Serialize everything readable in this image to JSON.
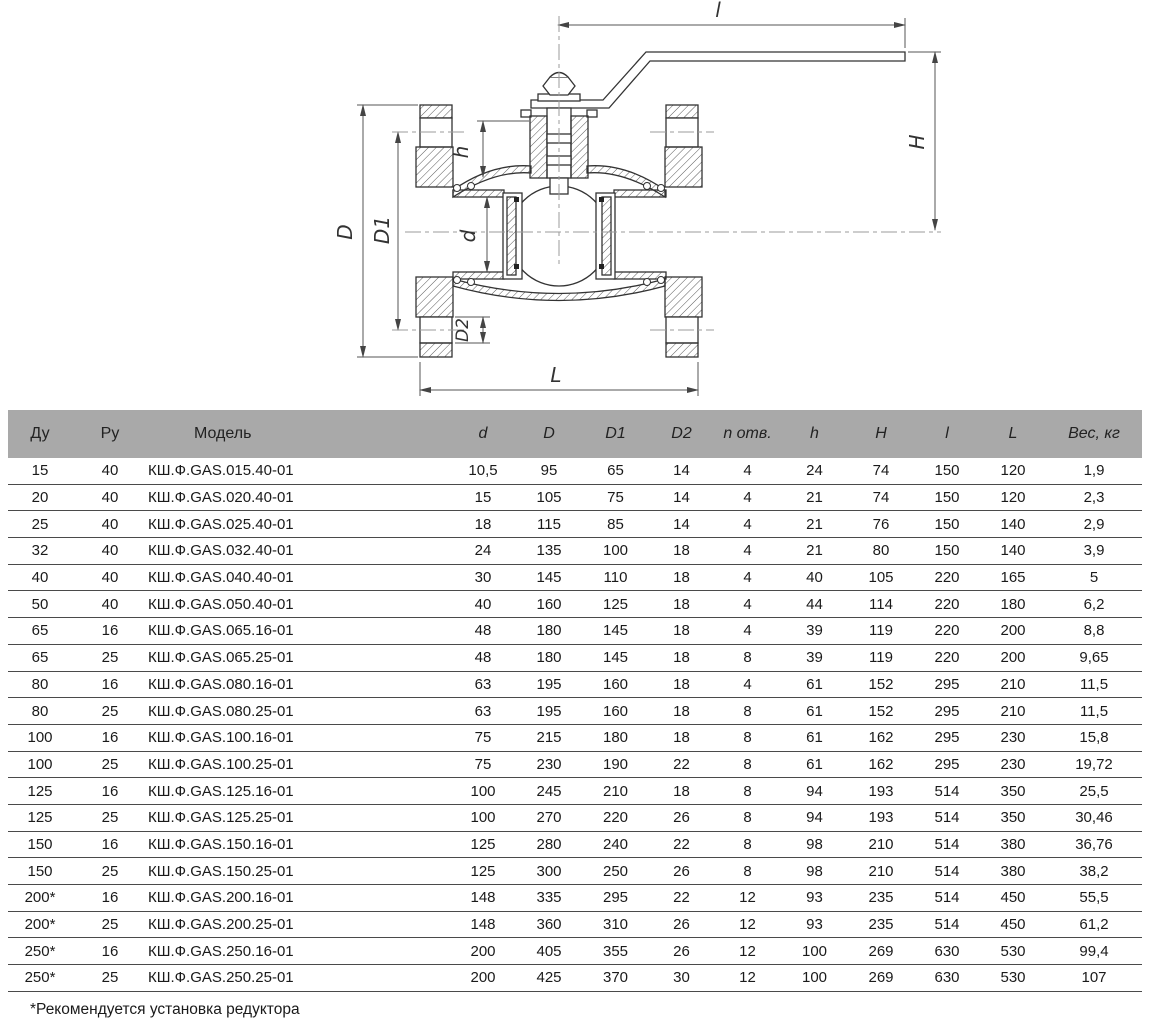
{
  "drawing": {
    "description": "Cross-section of flanged ball valve with lever handle",
    "dims": {
      "l": "l",
      "H": "H",
      "h": "h",
      "D": "D",
      "D1": "D1",
      "d": "d",
      "D2": "D2",
      "L": "L"
    }
  },
  "table": {
    "headers": [
      "Ду",
      "Ру",
      "Модель",
      "d",
      "D",
      "D1",
      "D2",
      "n отв.",
      "h",
      "H",
      "l",
      "L",
      "Вес, кг"
    ],
    "rows": [
      [
        "15",
        "40",
        "КШ.Ф.GAS.015.40-01",
        "10,5",
        "95",
        "65",
        "14",
        "4",
        "24",
        "74",
        "150",
        "120",
        "1,9"
      ],
      [
        "20",
        "40",
        "КШ.Ф.GAS.020.40-01",
        "15",
        "105",
        "75",
        "14",
        "4",
        "21",
        "74",
        "150",
        "120",
        "2,3"
      ],
      [
        "25",
        "40",
        "КШ.Ф.GAS.025.40-01",
        "18",
        "115",
        "85",
        "14",
        "4",
        "21",
        "76",
        "150",
        "140",
        "2,9"
      ],
      [
        "32",
        "40",
        "КШ.Ф.GAS.032.40-01",
        "24",
        "135",
        "100",
        "18",
        "4",
        "21",
        "80",
        "150",
        "140",
        "3,9"
      ],
      [
        "40",
        "40",
        "КШ.Ф.GAS.040.40-01",
        "30",
        "145",
        "110",
        "18",
        "4",
        "40",
        "105",
        "220",
        "165",
        "5"
      ],
      [
        "50",
        "40",
        "КШ.Ф.GAS.050.40-01",
        "40",
        "160",
        "125",
        "18",
        "4",
        "44",
        "114",
        "220",
        "180",
        "6,2"
      ],
      [
        "65",
        "16",
        "КШ.Ф.GAS.065.16-01",
        "48",
        "180",
        "145",
        "18",
        "4",
        "39",
        "119",
        "220",
        "200",
        "8,8"
      ],
      [
        "65",
        "25",
        "КШ.Ф.GAS.065.25-01",
        "48",
        "180",
        "145",
        "18",
        "8",
        "39",
        "119",
        "220",
        "200",
        "9,65"
      ],
      [
        "80",
        "16",
        "КШ.Ф.GAS.080.16-01",
        "63",
        "195",
        "160",
        "18",
        "4",
        "61",
        "152",
        "295",
        "210",
        "11,5"
      ],
      [
        "80",
        "25",
        "КШ.Ф.GAS.080.25-01",
        "63",
        "195",
        "160",
        "18",
        "8",
        "61",
        "152",
        "295",
        "210",
        "11,5"
      ],
      [
        "100",
        "16",
        "КШ.Ф.GAS.100.16-01",
        "75",
        "215",
        "180",
        "18",
        "8",
        "61",
        "162",
        "295",
        "230",
        "15,8"
      ],
      [
        "100",
        "25",
        "КШ.Ф.GAS.100.25-01",
        "75",
        "230",
        "190",
        "22",
        "8",
        "61",
        "162",
        "295",
        "230",
        "19,72"
      ],
      [
        "125",
        "16",
        "КШ.Ф.GAS.125.16-01",
        "100",
        "245",
        "210",
        "18",
        "8",
        "94",
        "193",
        "514",
        "350",
        "25,5"
      ],
      [
        "125",
        "25",
        "КШ.Ф.GAS.125.25-01",
        "100",
        "270",
        "220",
        "26",
        "8",
        "94",
        "193",
        "514",
        "350",
        "30,46"
      ],
      [
        "150",
        "16",
        "КШ.Ф.GAS.150.16-01",
        "125",
        "280",
        "240",
        "22",
        "8",
        "98",
        "210",
        "514",
        "380",
        "36,76"
      ],
      [
        "150",
        "25",
        "КШ.Ф.GAS.150.25-01",
        "125",
        "300",
        "250",
        "26",
        "8",
        "98",
        "210",
        "514",
        "380",
        "38,2"
      ],
      [
        "200*",
        "16",
        "КШ.Ф.GAS.200.16-01",
        "148",
        "335",
        "295",
        "22",
        "12",
        "93",
        "235",
        "514",
        "450",
        "55,5"
      ],
      [
        "200*",
        "25",
        "КШ.Ф.GAS.200.25-01",
        "148",
        "360",
        "310",
        "26",
        "12",
        "93",
        "235",
        "514",
        "450",
        "61,2"
      ],
      [
        "250*",
        "16",
        "КШ.Ф.GAS.250.16-01",
        "200",
        "405",
        "355",
        "26",
        "12",
        "100",
        "269",
        "630",
        "530",
        "99,4"
      ],
      [
        "250*",
        "25",
        "КШ.Ф.GAS.250.25-01",
        "200",
        "425",
        "370",
        "30",
        "12",
        "100",
        "269",
        "630",
        "530",
        "107"
      ]
    ],
    "footnote": "*Рекомендуется установка редуктора"
  },
  "colors": {
    "header_bg": "#a9a9a9",
    "row_line": "#4a4a4a",
    "text": "#1a1a1a",
    "drawing_line": "#333333",
    "centerline": "#999999"
  }
}
